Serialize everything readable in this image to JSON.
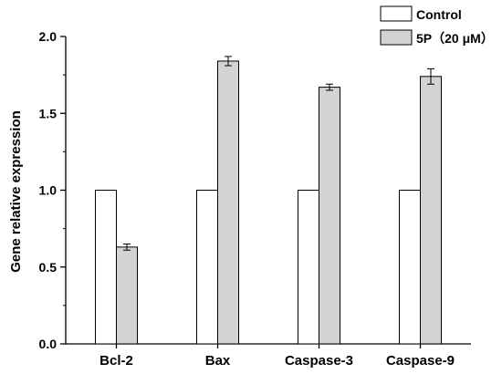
{
  "chart_data": {
    "type": "bar",
    "categories": [
      "Bcl-2",
      "Bax",
      "Caspase-3",
      "Caspase-9"
    ],
    "series": [
      {
        "name": "Control",
        "values": [
          1.0,
          1.0,
          1.0,
          1.0
        ],
        "errors": [
          0,
          0,
          0,
          0
        ],
        "color": "#ffffff"
      },
      {
        "name": "5P（20 μM）",
        "values": [
          0.63,
          1.84,
          1.67,
          1.74
        ],
        "errors": [
          0.02,
          0.03,
          0.02,
          0.05
        ],
        "color": "#d3d3d3"
      }
    ],
    "ylabel": "Gene relative expression",
    "xlabel": "",
    "ylim": [
      0,
      2.0
    ],
    "yticks": [
      "0.0",
      "0.5",
      "1.0",
      "1.5",
      "2.0"
    ],
    "grid": false,
    "legend_position": "top-right"
  }
}
